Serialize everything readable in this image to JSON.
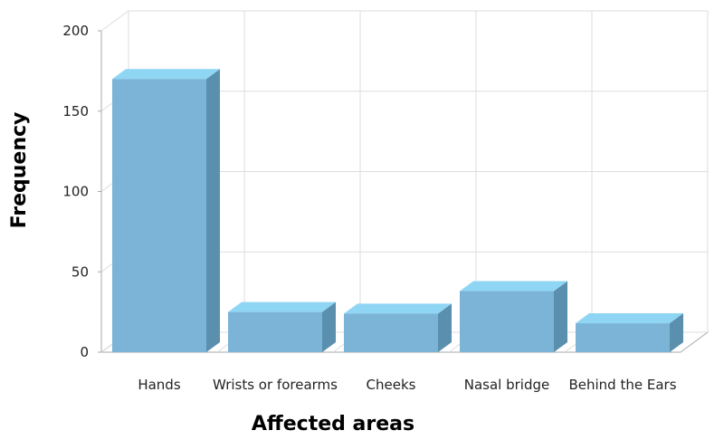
{
  "chart_data": {
    "type": "bar",
    "xlabel": "Affected areas",
    "ylabel": "Frequency",
    "categories": [
      "Hands",
      "Wrists or forearms",
      "Cheeks",
      "Nasal bridge",
      "Behind the Ears"
    ],
    "values": [
      170,
      25,
      24,
      38,
      18
    ],
    "ylim": [
      0,
      200
    ],
    "yticks": [
      "0",
      "50",
      "100",
      "150",
      "200"
    ],
    "grid": true,
    "style": "3d",
    "colors": {
      "bar_front": "#7bb4d6",
      "bar_top": "#8fd6f5",
      "bar_side": "#5a8fad",
      "grid": "#dddddd",
      "axis": "#aaaaaa"
    }
  }
}
